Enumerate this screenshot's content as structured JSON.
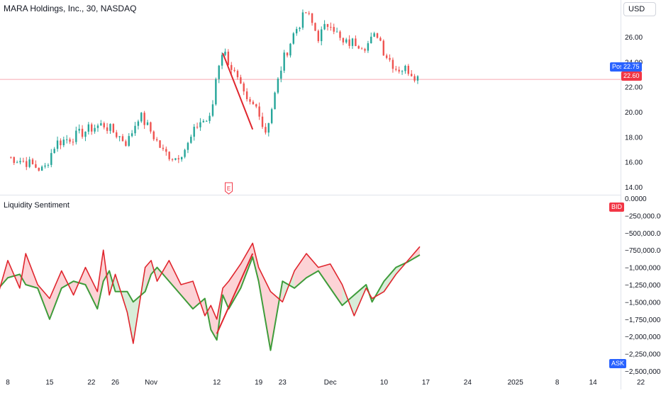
{
  "header": {
    "symbol_title": "MARA Holdings, Inc., 30, NASDAQ",
    "currency_button": "USD"
  },
  "indicator": {
    "title": "Liquidity Sentiment",
    "bid_badge": "BID",
    "ask_badge": "ASK"
  },
  "price_tags": {
    "post_label": "Post",
    "post_price": "22.75",
    "last_price": "22.60"
  },
  "earnings_marker": "E",
  "colors": {
    "up": "#26a69a",
    "down": "#ef5350",
    "bid_line": "#e0262e",
    "ask_line": "#3e9c3a",
    "post_tag": "#2962ff",
    "last_tag": "#f23645",
    "trendline": "#e0262e"
  },
  "chart_data": [
    {
      "type": "candlestick",
      "title": "MARA Holdings, Inc., 30, NASDAQ",
      "y_ticks": [
        "14.00",
        "16.00",
        "18.00",
        "20.00",
        "22.00",
        "24.00",
        "26.00"
      ],
      "ylim": [
        13.2,
        28.5
      ],
      "x_ticks": [
        "8",
        "15",
        "22",
        "26",
        "Nov",
        "12",
        "19",
        "23",
        "Dec",
        "10",
        "17",
        "24",
        "2025",
        "8",
        "14",
        "22"
      ],
      "anchors": {
        "x": [
          "Oct 8",
          "Oct 15",
          "Oct 22",
          "Oct 26",
          "Nov 1",
          "Nov 12",
          "Nov 19",
          "Nov 23",
          "Dec 1",
          "Dec 10",
          "Dec 17",
          "Dec 24",
          "Jan 1",
          "Jan 8",
          "Jan 14",
          "Jan 22"
        ],
        "series": [
          {
            "x": "Oct 8",
            "y": 16.4
          },
          {
            "x": "Oct 11",
            "y": 16.0
          },
          {
            "x": "Oct 14",
            "y": 15.3
          },
          {
            "x": "Oct 16",
            "y": 17.5
          },
          {
            "x": "Oct 19",
            "y": 18.0
          },
          {
            "x": "Oct 22",
            "y": 18.7
          },
          {
            "x": "Oct 24",
            "y": 19.0
          },
          {
            "x": "Oct 26",
            "y": 18.3
          },
          {
            "x": "Oct 28",
            "y": 17.5
          },
          {
            "x": "Oct 30",
            "y": 19.8
          },
          {
            "x": "Nov 1",
            "y": 18.4
          },
          {
            "x": "Nov 3",
            "y": 16.8
          },
          {
            "x": "Nov 5",
            "y": 16.3
          },
          {
            "x": "Nov 7",
            "y": 17.2
          },
          {
            "x": "Nov 9",
            "y": 19.2
          },
          {
            "x": "Nov 11",
            "y": 19.4
          },
          {
            "x": "Nov 12",
            "y": 23.3
          },
          {
            "x": "Nov 13",
            "y": 25.0
          },
          {
            "x": "Nov 15",
            "y": 23.0
          },
          {
            "x": "Nov 17",
            "y": 20.7
          },
          {
            "x": "Nov 19",
            "y": 20.3
          },
          {
            "x": "Nov 20",
            "y": 18.2
          },
          {
            "x": "Nov 21",
            "y": 19.9
          },
          {
            "x": "Nov 23",
            "y": 24.0
          },
          {
            "x": "Nov 25",
            "y": 26.4
          },
          {
            "x": "Nov 27",
            "y": 28.0
          },
          {
            "x": "Nov 29",
            "y": 26.0
          },
          {
            "x": "Dec 1",
            "y": 27.3
          },
          {
            "x": "Dec 3",
            "y": 25.4
          },
          {
            "x": "Dec 5",
            "y": 25.6
          },
          {
            "x": "Dec 7",
            "y": 25.3
          },
          {
            "x": "Dec 9",
            "y": 26.3
          },
          {
            "x": "Dec 10",
            "y": 24.8
          },
          {
            "x": "Dec 12",
            "y": 23.5
          },
          {
            "x": "Dec 14",
            "y": 23.4
          },
          {
            "x": "Dec 16",
            "y": 22.6
          }
        ]
      },
      "annotations": {
        "trendline": [
          {
            "x": "Nov 13",
            "y": 24.7
          },
          {
            "x": "Nov 18",
            "y": 18.6
          }
        ],
        "horizontal_line": 22.6,
        "post_price": 22.75,
        "last_price": 22.6
      }
    },
    {
      "type": "area",
      "title": "Liquidity Sentiment",
      "y_ticks": [
        "0.0000",
        "−250,000.00",
        "−500,000.00",
        "−750,000.00",
        "−1,000,000.00",
        "−1,250,000.00",
        "−1,500,000.00",
        "−1,750,000.00",
        "−2,000,000.00",
        "−2,250,000.00",
        "−2,500,000.00"
      ],
      "ylim": [
        -2500000,
        0
      ],
      "series": [
        {
          "color": "#e0262e",
          "points": [
            {
              "x": "Oct 6",
              "y": -1500000
            },
            {
              "x": "Oct 8",
              "y": -900000
            },
            {
              "x": "Oct 10",
              "y": -1300000
            },
            {
              "x": "Oct 11",
              "y": -800000
            },
            {
              "x": "Oct 13",
              "y": -1250000
            },
            {
              "x": "Oct 15",
              "y": -1450000
            },
            {
              "x": "Oct 17",
              "y": -1050000
            },
            {
              "x": "Oct 19",
              "y": -1400000
            },
            {
              "x": "Oct 21",
              "y": -1000000
            },
            {
              "x": "Oct 23",
              "y": -1350000
            },
            {
              "x": "Oct 24",
              "y": -750000
            },
            {
              "x": "Oct 25",
              "y": -1400000
            },
            {
              "x": "Oct 26",
              "y": -1100000
            },
            {
              "x": "Oct 28",
              "y": -1650000
            },
            {
              "x": "Oct 29",
              "y": -2100000
            },
            {
              "x": "Oct 31",
              "y": -1000000
            },
            {
              "x": "Nov 1",
              "y": -900000
            },
            {
              "x": "Nov 2",
              "y": -1200000
            },
            {
              "x": "Nov 4",
              "y": -900000
            },
            {
              "x": "Nov 6",
              "y": -1250000
            },
            {
              "x": "Nov 8",
              "y": -1200000
            },
            {
              "x": "Nov 10",
              "y": -1700000
            },
            {
              "x": "Nov 11",
              "y": -1550000
            },
            {
              "x": "Nov 12",
              "y": -1750000
            },
            {
              "x": "Nov 13",
              "y": -1300000
            },
            {
              "x": "Nov 14",
              "y": -1200000
            },
            {
              "x": "Nov 16",
              "y": -950000
            },
            {
              "x": "Nov 18",
              "y": -650000
            },
            {
              "x": "Nov 19",
              "y": -1000000
            },
            {
              "x": "Nov 21",
              "y": -1350000
            },
            {
              "x": "Nov 23",
              "y": -1500000
            },
            {
              "x": "Nov 25",
              "y": -1050000
            },
            {
              "x": "Nov 27",
              "y": -800000
            },
            {
              "x": "Nov 29",
              "y": -1000000
            },
            {
              "x": "Dec 1",
              "y": -950000
            },
            {
              "x": "Dec 3",
              "y": -1250000
            },
            {
              "x": "Dec 5",
              "y": -1700000
            },
            {
              "x": "Dec 7",
              "y": -1300000
            },
            {
              "x": "Dec 8",
              "y": -1450000
            },
            {
              "x": "Dec 10",
              "y": -1350000
            },
            {
              "x": "Dec 12",
              "y": -1100000
            },
            {
              "x": "Dec 14",
              "y": -900000
            },
            {
              "x": "Dec 16",
              "y": -700000
            }
          ]
        },
        {
          "color": "#3e9c3a",
          "points": [
            {
              "x": "Oct 6",
              "y": -1350000
            },
            {
              "x": "Oct 8",
              "y": -1150000
            },
            {
              "x": "Oct 10",
              "y": -1100000
            },
            {
              "x": "Oct 11",
              "y": -1250000
            },
            {
              "x": "Oct 13",
              "y": -1300000
            },
            {
              "x": "Oct 15",
              "y": -1750000
            },
            {
              "x": "Oct 17",
              "y": -1300000
            },
            {
              "x": "Oct 19",
              "y": -1200000
            },
            {
              "x": "Oct 21",
              "y": -1250000
            },
            {
              "x": "Oct 23",
              "y": -1600000
            },
            {
              "x": "Oct 24",
              "y": -1200000
            },
            {
              "x": "Oct 25",
              "y": -1050000
            },
            {
              "x": "Oct 26",
              "y": -1350000
            },
            {
              "x": "Oct 28",
              "y": -1350000
            },
            {
              "x": "Oct 29",
              "y": -1500000
            },
            {
              "x": "Oct 31",
              "y": -1350000
            },
            {
              "x": "Nov 1",
              "y": -1100000
            },
            {
              "x": "Nov 2",
              "y": -1000000
            },
            {
              "x": "Nov 4",
              "y": -1200000
            },
            {
              "x": "Nov 6",
              "y": -1400000
            },
            {
              "x": "Nov 8",
              "y": -1600000
            },
            {
              "x": "Nov 10",
              "y": -1450000
            },
            {
              "x": "Nov 11",
              "y": -1900000
            },
            {
              "x": "Nov 12",
              "y": -2050000
            },
            {
              "x": "Nov 13",
              "y": -1400000
            },
            {
              "x": "Nov 14",
              "y": -1600000
            },
            {
              "x": "Nov 16",
              "y": -1300000
            },
            {
              "x": "Nov 18",
              "y": -850000
            },
            {
              "x": "Nov 19",
              "y": -1200000
            },
            {
              "x": "Nov 21",
              "y": -2200000
            },
            {
              "x": "Nov 23",
              "y": -1200000
            },
            {
              "x": "Nov 25",
              "y": -1300000
            },
            {
              "x": "Nov 27",
              "y": -1150000
            },
            {
              "x": "Nov 29",
              "y": -1050000
            },
            {
              "x": "Dec 1",
              "y": -1300000
            },
            {
              "x": "Dec 3",
              "y": -1550000
            },
            {
              "x": "Dec 5",
              "y": -1400000
            },
            {
              "x": "Dec 7",
              "y": -1250000
            },
            {
              "x": "Dec 8",
              "y": -1500000
            },
            {
              "x": "Dec 10",
              "y": -1200000
            },
            {
              "x": "Dec 12",
              "y": -1000000
            },
            {
              "x": "Dec 14",
              "y": -920000
            },
            {
              "x": "Dec 16",
              "y": -820000
            }
          ]
        }
      ],
      "annotations": {
        "trendline": [
          {
            "x": "Nov 12",
            "y": -1960000
          },
          {
            "x": "Nov 18",
            "y": -800000
          }
        ]
      }
    }
  ]
}
